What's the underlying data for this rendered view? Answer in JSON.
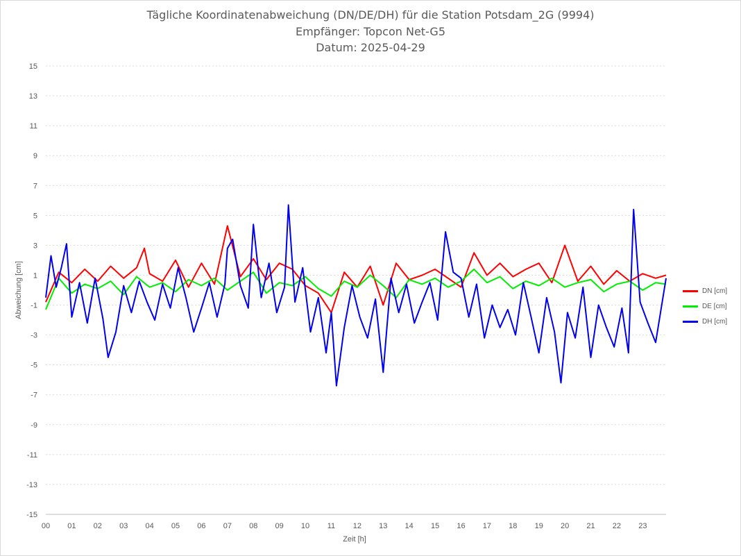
{
  "chart_data": {
    "type": "line",
    "title": "Tägliche Koordinatenabweichung (DN/DE/DH) für die Station Potsdam_2G (9994)",
    "subtitle": "Empfänger: Topcon Net-G5",
    "date_line": "Datum: 2025-04-29",
    "xlabel": "Zeit [h]",
    "ylabel": "Abweichung [cm]",
    "ylim": [
      -15,
      15
    ],
    "y_ticks": [
      "15",
      "13",
      "11",
      "9",
      "7",
      "5",
      "3",
      "1",
      "-1",
      "-3",
      "-5",
      "-7",
      "-9",
      "-11",
      "-13",
      "-15"
    ],
    "x_ticks": [
      "00",
      "01",
      "02",
      "03",
      "04",
      "05",
      "06",
      "07",
      "08",
      "09",
      "10",
      "11",
      "12",
      "13",
      "14",
      "15",
      "16",
      "17",
      "18",
      "19",
      "20",
      "21",
      "22",
      "23"
    ],
    "xlim": [
      0,
      23.9
    ],
    "grid": "horizontal dotted",
    "legend_position": "right",
    "series": [
      {
        "name": "DN [cm]",
        "color": "#ff0000",
        "x": [
          0,
          0.5,
          1,
          1.5,
          2,
          2.5,
          3,
          3.5,
          3.8,
          4,
          4.5,
          5,
          5.5,
          6,
          6.5,
          7,
          7.5,
          8,
          8.5,
          9,
          9.5,
          10,
          10.5,
          11,
          11.5,
          12,
          12.5,
          13,
          13.5,
          14,
          14.5,
          15,
          15.5,
          16,
          16.5,
          17,
          17.5,
          18,
          18.5,
          19,
          19.5,
          20,
          20.5,
          21,
          21.5,
          22,
          22.5,
          23,
          23.5,
          23.9
        ],
        "values": [
          -0.8,
          1.2,
          0.5,
          1.4,
          0.6,
          1.6,
          0.8,
          1.5,
          2.8,
          1.1,
          0.6,
          2.0,
          0.2,
          1.8,
          0.4,
          4.3,
          0.9,
          2.1,
          0.7,
          1.8,
          1.4,
          0.3,
          -0.2,
          -1.5,
          1.2,
          0.2,
          1.6,
          -1.0,
          1.8,
          0.7,
          1.0,
          1.4,
          0.8,
          0.2,
          2.5,
          1.0,
          1.8,
          0.9,
          1.4,
          1.8,
          0.5,
          3.0,
          0.6,
          1.6,
          0.4,
          1.3,
          0.6,
          1.1,
          0.8,
          1.0
        ]
      },
      {
        "name": "DE [cm]",
        "color": "#00ee00",
        "x": [
          0,
          0.5,
          1,
          1.5,
          2,
          2.5,
          3,
          3.5,
          4,
          4.5,
          5,
          5.5,
          6,
          6.5,
          7,
          7.5,
          8,
          8.5,
          9,
          9.5,
          10,
          10.5,
          11,
          11.5,
          12,
          12.5,
          13,
          13.5,
          14,
          14.5,
          15,
          15.5,
          16,
          16.5,
          17,
          17.5,
          18,
          18.5,
          19,
          19.5,
          20,
          20.5,
          21,
          21.5,
          22,
          22.5,
          23,
          23.5,
          23.9
        ],
        "values": [
          -1.3,
          0.8,
          -0.2,
          0.4,
          0.1,
          0.6,
          -0.3,
          0.9,
          0.2,
          0.5,
          -0.1,
          0.7,
          0.3,
          0.8,
          0.0,
          0.6,
          1.2,
          -0.2,
          0.5,
          0.3,
          0.9,
          0.1,
          -0.4,
          0.6,
          0.2,
          1.0,
          0.3,
          -0.5,
          0.7,
          0.4,
          0.8,
          0.2,
          0.6,
          1.4,
          0.5,
          0.9,
          0.1,
          0.6,
          0.3,
          0.8,
          0.2,
          0.5,
          0.7,
          -0.1,
          0.4,
          0.6,
          0.0,
          0.5,
          0.4
        ]
      },
      {
        "name": "DH [cm]",
        "color": "#0000ee",
        "x": [
          0,
          0.2,
          0.4,
          0.6,
          0.8,
          1,
          1.3,
          1.6,
          1.9,
          2.2,
          2.4,
          2.7,
          3,
          3.3,
          3.6,
          3.9,
          4.2,
          4.5,
          4.8,
          5.1,
          5.4,
          5.7,
          6,
          6.3,
          6.6,
          6.9,
          7,
          7.2,
          7.5,
          7.8,
          8,
          8.3,
          8.6,
          8.9,
          9.2,
          9.35,
          9.6,
          9.9,
          10.2,
          10.5,
          10.8,
          11,
          11.2,
          11.5,
          11.8,
          12.1,
          12.4,
          12.7,
          13,
          13.3,
          13.6,
          13.9,
          14.2,
          14.5,
          14.8,
          15.1,
          15.4,
          15.7,
          16,
          16.3,
          16.6,
          16.9,
          17.2,
          17.5,
          17.8,
          18.1,
          18.4,
          18.7,
          19,
          19.3,
          19.6,
          19.85,
          20.1,
          20.4,
          20.7,
          21,
          21.3,
          21.6,
          21.9,
          22.2,
          22.45,
          22.65,
          22.9,
          23.2,
          23.5,
          23.9
        ],
        "values": [
          -0.5,
          2.3,
          0.2,
          1.5,
          3.1,
          -1.8,
          0.5,
          -2.2,
          0.8,
          -1.9,
          -4.5,
          -2.8,
          0.3,
          -1.5,
          0.6,
          -0.8,
          -2.0,
          0.4,
          -1.2,
          1.5,
          -0.5,
          -2.8,
          -1.2,
          0.5,
          -1.8,
          0.4,
          2.8,
          3.4,
          0.3,
          -1.2,
          4.4,
          -0.5,
          1.8,
          -1.5,
          0.2,
          5.7,
          -0.8,
          1.5,
          -2.8,
          -0.5,
          -4.2,
          -1.5,
          -6.4,
          -2.5,
          0.3,
          -1.8,
          -3.2,
          -0.6,
          -5.5,
          0.8,
          -1.5,
          0.4,
          -2.2,
          -0.8,
          0.5,
          -2.0,
          3.9,
          1.2,
          0.8,
          -1.8,
          0.4,
          -3.2,
          -1.0,
          -2.5,
          -1.3,
          -3.0,
          0.5,
          -1.8,
          -4.2,
          -0.5,
          -2.8,
          -6.2,
          -1.5,
          -3.2,
          0.2,
          -4.5,
          -1.0,
          -2.5,
          -3.8,
          -1.2,
          -4.2,
          5.4,
          -0.8,
          -2.2,
          -3.5,
          0.8
        ]
      }
    ]
  }
}
